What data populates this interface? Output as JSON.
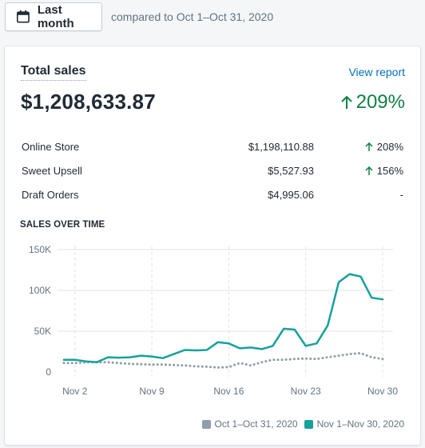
{
  "header": {
    "date_button_label": "Last month",
    "compare_text": "compared to Oct 1–Oct 31, 2020"
  },
  "card": {
    "title": "Total sales",
    "view_report_label": "View report",
    "total_value": "$1,208,633.87",
    "total_change": "209%",
    "channels": [
      {
        "name": "Online Store",
        "amount": "$1,198,110.88",
        "change": "208%",
        "trend": "up"
      },
      {
        "name": "Sweet Upsell",
        "amount": "$5,527.93",
        "change": "156%",
        "trend": "up"
      },
      {
        "name": "Draft Orders",
        "amount": "$4,995.06",
        "change": "-",
        "trend": "none"
      }
    ],
    "sales_over_time_label": "SALES OVER TIME"
  },
  "colors": {
    "current": "#15a29a",
    "previous": "#919eab",
    "positive": "#108043",
    "link": "#006fbb"
  },
  "chart_data": {
    "type": "line",
    "title": "SALES OVER TIME",
    "x": [
      1,
      2,
      3,
      4,
      5,
      6,
      7,
      8,
      9,
      10,
      11,
      12,
      13,
      14,
      15,
      16,
      17,
      18,
      19,
      20,
      21,
      22,
      23,
      24,
      25,
      26,
      27,
      28,
      29,
      30
    ],
    "xticks": [
      {
        "day": 2,
        "label": "Nov 2"
      },
      {
        "day": 9,
        "label": "Nov 9"
      },
      {
        "day": 16,
        "label": "Nov 16"
      },
      {
        "day": 23,
        "label": "Nov 23"
      },
      {
        "day": 30,
        "label": "Nov 30"
      }
    ],
    "yticks": [
      {
        "value": 0,
        "label": "0"
      },
      {
        "value": 50000,
        "label": "50K"
      },
      {
        "value": 100000,
        "label": "100K"
      },
      {
        "value": 150000,
        "label": "150K"
      }
    ],
    "ylim": [
      0,
      150000
    ],
    "grid": true,
    "legend_position": "bottom-right",
    "series": [
      {
        "name": "Oct 1–Oct 31, 2020",
        "style": "dotted",
        "values": [
          11000,
          11000,
          12000,
          12000,
          12000,
          11000,
          10000,
          9500,
          9000,
          9000,
          8500,
          8000,
          7000,
          6500,
          5500,
          6000,
          11000,
          8000,
          12000,
          15000,
          15000,
          16000,
          16500,
          16000,
          18000,
          20000,
          22000,
          23000,
          18000,
          16000
        ]
      },
      {
        "name": "Nov 1–Nov 30, 2020",
        "style": "solid",
        "values": [
          15000,
          15000,
          13000,
          12000,
          18000,
          17500,
          18000,
          20000,
          19000,
          17000,
          22000,
          27000,
          26500,
          27000,
          36500,
          35000,
          29000,
          30000,
          28000,
          32000,
          53000,
          52000,
          32000,
          35000,
          57000,
          110000,
          120000,
          117000,
          91000,
          89000
        ]
      }
    ]
  }
}
